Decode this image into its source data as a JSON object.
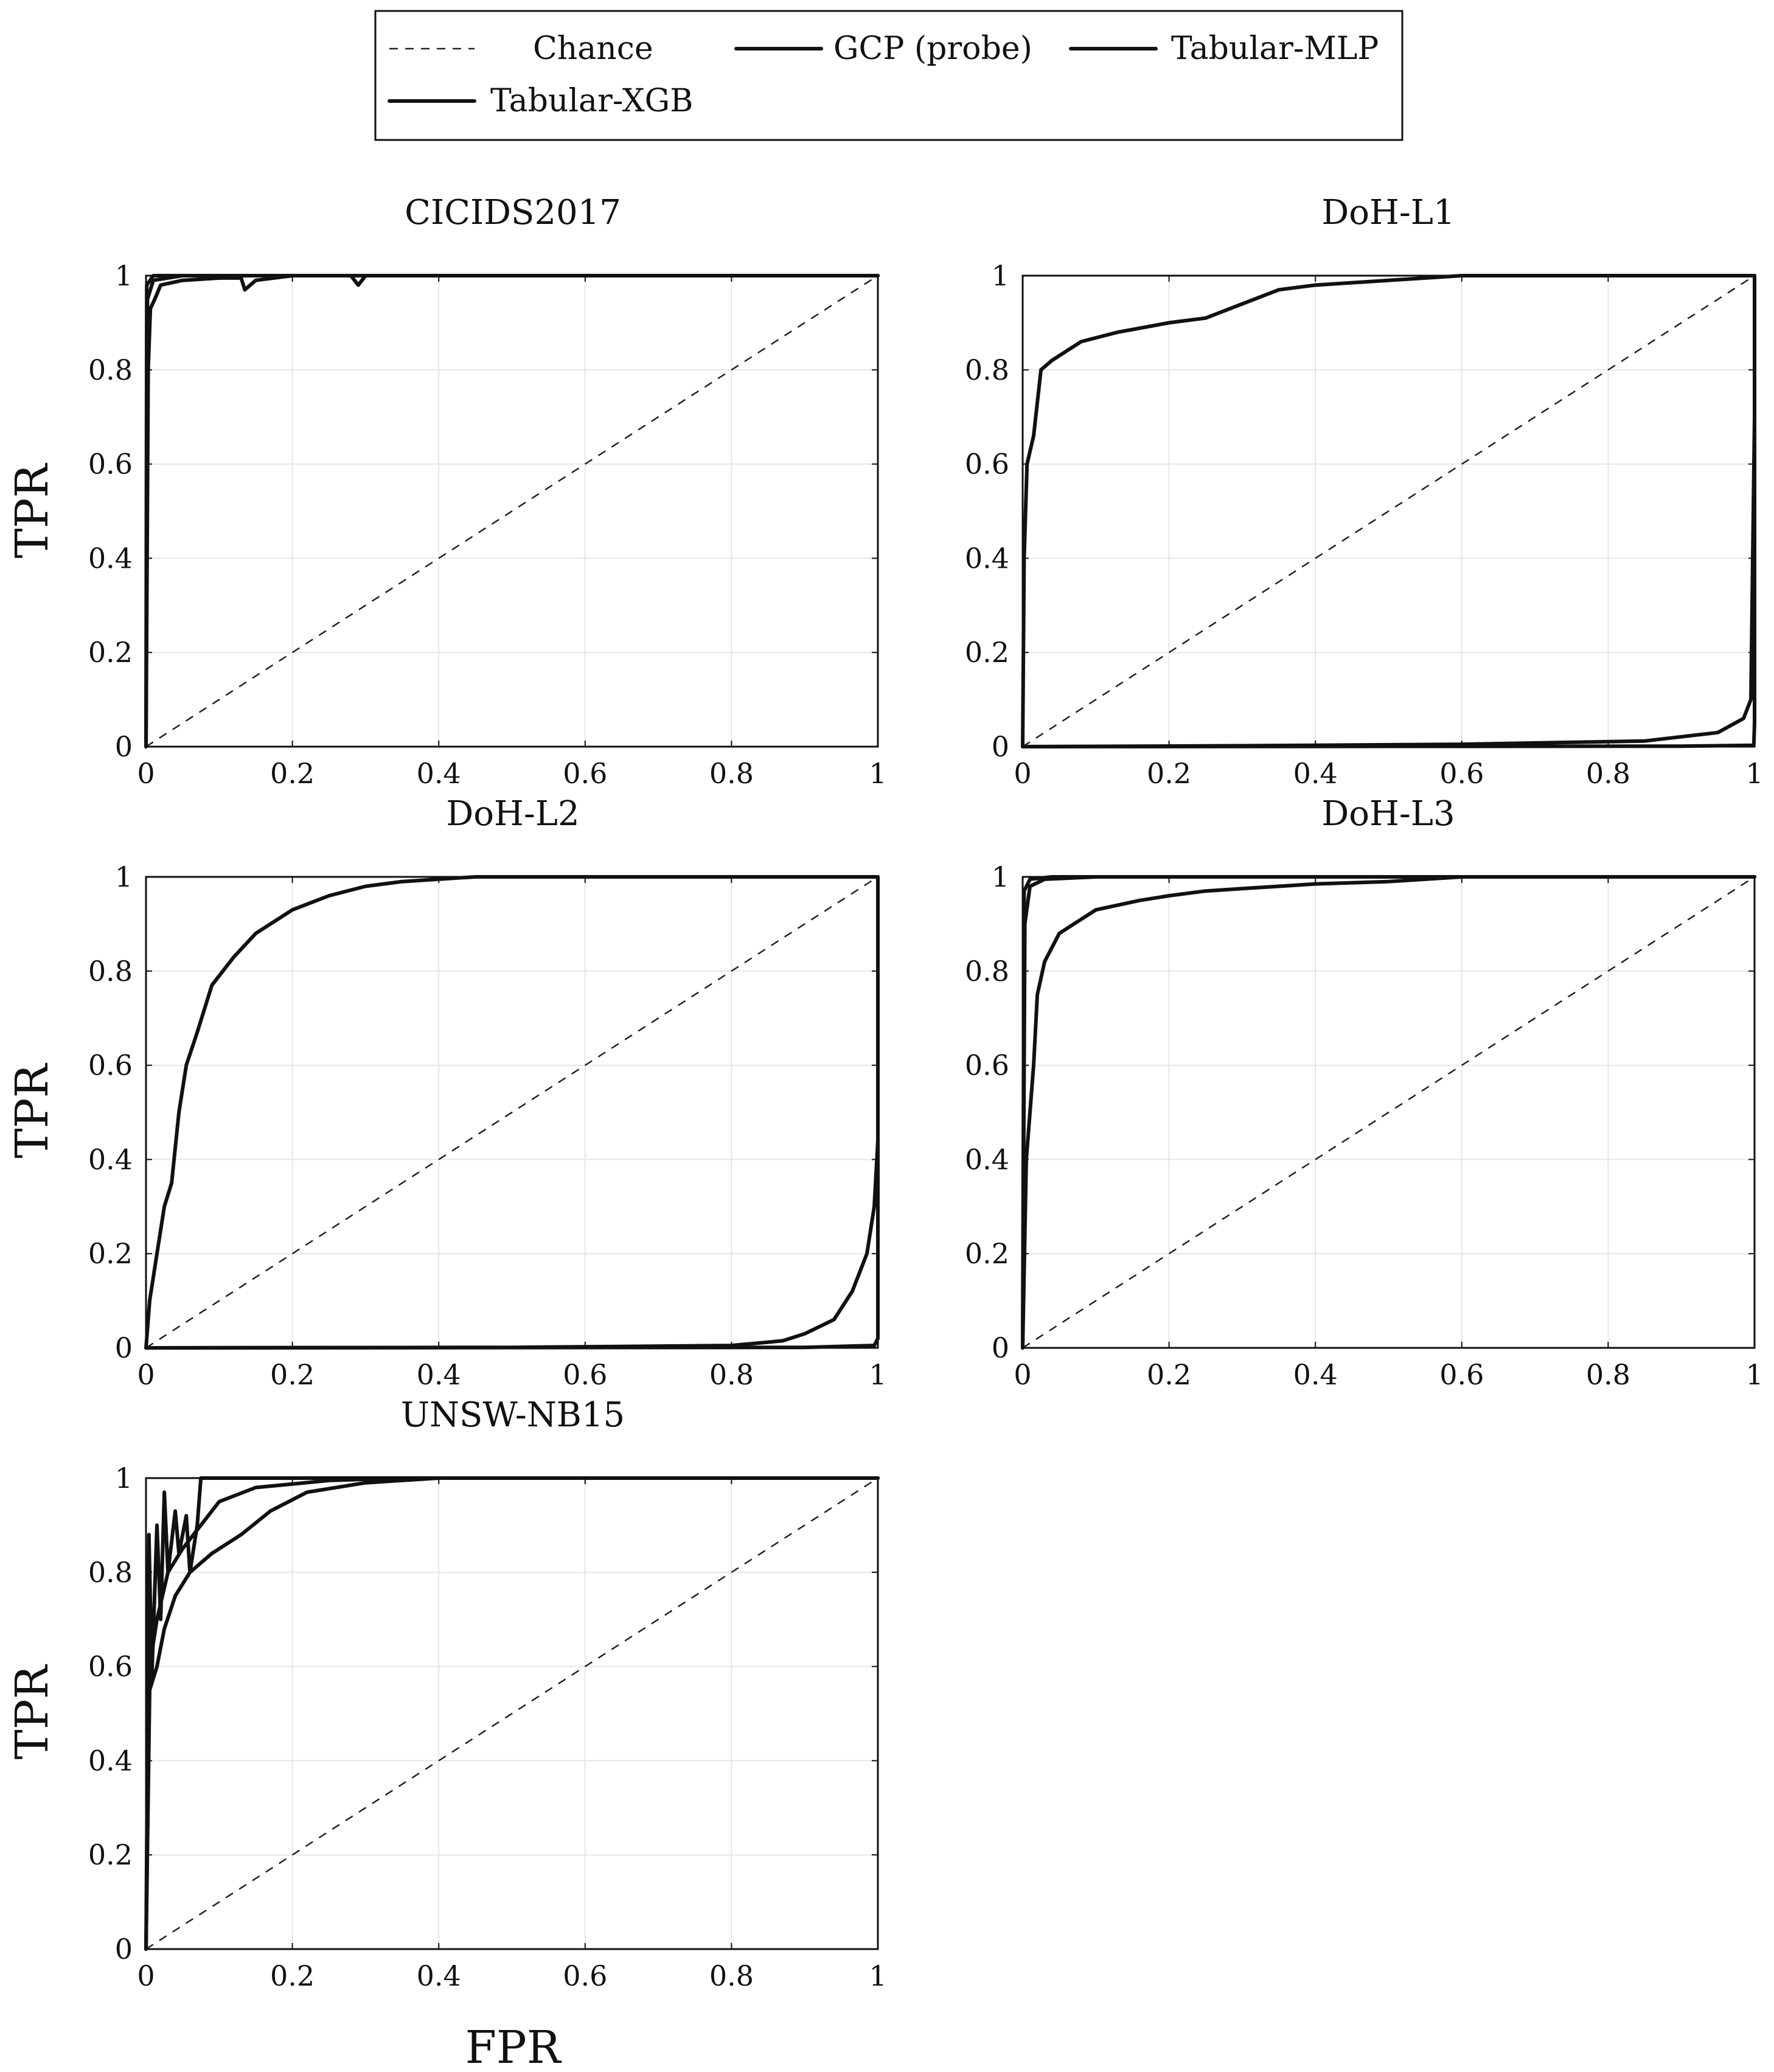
{
  "legend": {
    "entries": [
      {
        "label": "Chance",
        "style": "dashed"
      },
      {
        "label": "GCP (probe)",
        "style": "solid"
      },
      {
        "label": "Tabular-MLP",
        "style": "solid"
      },
      {
        "label": "Tabular-XGB",
        "style": "solid"
      }
    ]
  },
  "colors": {
    "line": "#111111",
    "grid": "#e6e6e6",
    "background": "#ffffff"
  },
  "chart_data": [
    {
      "type": "line",
      "title": "CICIDS2017",
      "xlabel": "",
      "ylabel": "TPR",
      "xlim": [
        0,
        1
      ],
      "ylim": [
        0,
        1
      ],
      "xticks": [
        "0",
        "0.2",
        "0.4",
        "0.6",
        "0.8",
        "1"
      ],
      "yticks": [
        "0",
        "0.2",
        "0.4",
        "0.6",
        "0.8",
        "1"
      ],
      "grid": true,
      "series": [
        {
          "name": "Chance",
          "style": "dashed",
          "points": [
            [
              0,
              0
            ],
            [
              1,
              1
            ]
          ]
        },
        {
          "name": "GCP (probe)",
          "points": [
            [
              0,
              0
            ],
            [
              0.003,
              0.8
            ],
            [
              0.006,
              0.93
            ],
            [
              0.012,
              0.95
            ],
            [
              0.02,
              0.98
            ],
            [
              0.05,
              0.99
            ],
            [
              0.1,
              0.995
            ],
            [
              0.13,
              0.995
            ],
            [
              0.135,
              0.97
            ],
            [
              0.15,
              0.99
            ],
            [
              0.2,
              1
            ],
            [
              0.28,
              1
            ],
            [
              0.29,
              0.98
            ],
            [
              0.3,
              1
            ],
            [
              1,
              1
            ]
          ]
        },
        {
          "name": "Tabular-MLP",
          "points": [
            [
              0,
              0
            ],
            [
              0.002,
              0.95
            ],
            [
              0.01,
              0.99
            ],
            [
              0.05,
              1
            ],
            [
              1,
              1
            ]
          ]
        },
        {
          "name": "Tabular-XGB",
          "points": [
            [
              0,
              0
            ],
            [
              0.001,
              0.98
            ],
            [
              0.01,
              1
            ],
            [
              1,
              1
            ]
          ]
        }
      ]
    },
    {
      "type": "line",
      "title": "DoH-L1",
      "xlabel": "",
      "ylabel": "",
      "xlim": [
        0,
        1
      ],
      "ylim": [
        0,
        1
      ],
      "xticks": [
        "0",
        "0.2",
        "0.4",
        "0.6",
        "0.8",
        "1"
      ],
      "yticks": [
        "0",
        "0.2",
        "0.4",
        "0.6",
        "0.8",
        "1"
      ],
      "grid": true,
      "series": [
        {
          "name": "Chance",
          "style": "dashed",
          "points": [
            [
              0,
              0
            ],
            [
              1,
              1
            ]
          ]
        },
        {
          "name": "GCP (probe)",
          "points": [
            [
              0,
              0
            ],
            [
              0.002,
              0.4
            ],
            [
              0.006,
              0.6
            ],
            [
              0.015,
              0.66
            ],
            [
              0.025,
              0.8
            ],
            [
              0.04,
              0.82
            ],
            [
              0.08,
              0.86
            ],
            [
              0.13,
              0.88
            ],
            [
              0.2,
              0.9
            ],
            [
              0.25,
              0.91
            ],
            [
              0.3,
              0.94
            ],
            [
              0.35,
              0.97
            ],
            [
              0.4,
              0.98
            ],
            [
              0.5,
              0.99
            ],
            [
              0.6,
              1
            ],
            [
              1,
              1
            ]
          ]
        },
        {
          "name": "Tabular-MLP",
          "points": [
            [
              0,
              0
            ],
            [
              0.3,
              0.002
            ],
            [
              0.6,
              0.005
            ],
            [
              0.85,
              0.012
            ],
            [
              0.95,
              0.03
            ],
            [
              0.985,
              0.06
            ],
            [
              0.995,
              0.1
            ],
            [
              1,
              0.7
            ],
            [
              1,
              1
            ]
          ]
        },
        {
          "name": "Tabular-XGB",
          "points": [
            [
              0,
              0
            ],
            [
              0.9,
              0.001
            ],
            [
              0.999,
              0.003
            ],
            [
              1,
              0.05
            ],
            [
              1,
              1
            ]
          ]
        }
      ]
    },
    {
      "type": "line",
      "title": "DoH-L2",
      "xlabel": "",
      "ylabel": "TPR",
      "xlim": [
        0,
        1
      ],
      "ylim": [
        0,
        1
      ],
      "xticks": [
        "0",
        "0.2",
        "0.4",
        "0.6",
        "0.8",
        "1"
      ],
      "yticks": [
        "0",
        "0.2",
        "0.4",
        "0.6",
        "0.8",
        "1"
      ],
      "grid": true,
      "series": [
        {
          "name": "Chance",
          "style": "dashed",
          "points": [
            [
              0,
              0
            ],
            [
              1,
              1
            ]
          ]
        },
        {
          "name": "GCP (probe)",
          "points": [
            [
              0,
              0
            ],
            [
              0.005,
              0.1
            ],
            [
              0.015,
              0.2
            ],
            [
              0.025,
              0.3
            ],
            [
              0.035,
              0.35
            ],
            [
              0.045,
              0.5
            ],
            [
              0.055,
              0.6
            ],
            [
              0.07,
              0.67
            ],
            [
              0.09,
              0.77
            ],
            [
              0.12,
              0.83
            ],
            [
              0.15,
              0.88
            ],
            [
              0.2,
              0.93
            ],
            [
              0.25,
              0.96
            ],
            [
              0.3,
              0.98
            ],
            [
              0.35,
              0.99
            ],
            [
              0.45,
              1
            ],
            [
              1,
              1
            ]
          ]
        },
        {
          "name": "Tabular-MLP",
          "points": [
            [
              0,
              0
            ],
            [
              0.5,
              0.001
            ],
            [
              0.8,
              0.005
            ],
            [
              0.87,
              0.015
            ],
            [
              0.9,
              0.03
            ],
            [
              0.94,
              0.06
            ],
            [
              0.965,
              0.12
            ],
            [
              0.985,
              0.2
            ],
            [
              0.995,
              0.3
            ],
            [
              1,
              0.44
            ],
            [
              1,
              1
            ]
          ]
        },
        {
          "name": "Tabular-XGB",
          "points": [
            [
              0,
              0
            ],
            [
              0.9,
              0.001
            ],
            [
              0.995,
              0.005
            ],
            [
              1,
              0.02
            ],
            [
              1,
              1
            ]
          ]
        }
      ]
    },
    {
      "type": "line",
      "title": "DoH-L3",
      "xlabel": "",
      "ylabel": "",
      "xlim": [
        0,
        1
      ],
      "ylim": [
        0,
        1
      ],
      "xticks": [
        "0",
        "0.2",
        "0.4",
        "0.6",
        "0.8",
        "1"
      ],
      "yticks": [
        "0",
        "0.2",
        "0.4",
        "0.6",
        "0.8",
        "1"
      ],
      "grid": true,
      "series": [
        {
          "name": "Chance",
          "style": "dashed",
          "points": [
            [
              0,
              0
            ],
            [
              1,
              1
            ]
          ]
        },
        {
          "name": "GCP (probe)",
          "points": [
            [
              0,
              0
            ],
            [
              0.005,
              0.4
            ],
            [
              0.01,
              0.5
            ],
            [
              0.015,
              0.6
            ],
            [
              0.02,
              0.75
            ],
            [
              0.03,
              0.82
            ],
            [
              0.04,
              0.85
            ],
            [
              0.05,
              0.88
            ],
            [
              0.07,
              0.9
            ],
            [
              0.1,
              0.93
            ],
            [
              0.13,
              0.94
            ],
            [
              0.16,
              0.95
            ],
            [
              0.2,
              0.96
            ],
            [
              0.25,
              0.97
            ],
            [
              0.3,
              0.975
            ],
            [
              0.35,
              0.98
            ],
            [
              0.4,
              0.985
            ],
            [
              0.5,
              0.99
            ],
            [
              0.6,
              1
            ],
            [
              1,
              1
            ]
          ]
        },
        {
          "name": "Tabular-MLP",
          "points": [
            [
              0,
              0
            ],
            [
              0.003,
              0.9
            ],
            [
              0.01,
              0.98
            ],
            [
              0.03,
              0.995
            ],
            [
              0.1,
              1
            ],
            [
              1,
              1
            ]
          ]
        },
        {
          "name": "Tabular-XGB",
          "points": [
            [
              0,
              0
            ],
            [
              0.002,
              0.97
            ],
            [
              0.01,
              0.995
            ],
            [
              0.04,
              1
            ],
            [
              1,
              1
            ]
          ]
        }
      ]
    },
    {
      "type": "line",
      "title": "UNSW-NB15",
      "xlabel": "FPR",
      "ylabel": "TPR",
      "xlim": [
        0,
        1
      ],
      "ylim": [
        0,
        1
      ],
      "xticks": [
        "0",
        "0.2",
        "0.4",
        "0.6",
        "0.8",
        "1"
      ],
      "yticks": [
        "0",
        "0.2",
        "0.4",
        "0.6",
        "0.8",
        "1"
      ],
      "grid": true,
      "series": [
        {
          "name": "Chance",
          "style": "dashed",
          "points": [
            [
              0,
              0
            ],
            [
              1,
              1
            ]
          ]
        },
        {
          "name": "GCP (probe)",
          "points": [
            [
              0,
              0
            ],
            [
              0.005,
              0.55
            ],
            [
              0.015,
              0.6
            ],
            [
              0.025,
              0.68
            ],
            [
              0.04,
              0.75
            ],
            [
              0.06,
              0.8
            ],
            [
              0.09,
              0.84
            ],
            [
              0.13,
              0.88
            ],
            [
              0.17,
              0.93
            ],
            [
              0.22,
              0.97
            ],
            [
              0.3,
              0.99
            ],
            [
              0.4,
              1
            ],
            [
              1,
              1
            ]
          ]
        },
        {
          "name": "Tabular-MLP",
          "points": [
            [
              0,
              0
            ],
            [
              0.005,
              0.6
            ],
            [
              0.015,
              0.7
            ],
            [
              0.03,
              0.8
            ],
            [
              0.05,
              0.85
            ],
            [
              0.075,
              0.9
            ],
            [
              0.1,
              0.95
            ],
            [
              0.15,
              0.98
            ],
            [
              0.25,
              0.995
            ],
            [
              0.35,
              1
            ],
            [
              1,
              1
            ]
          ]
        },
        {
          "name": "Tabular-XGB",
          "points": [
            [
              0,
              0
            ],
            [
              0.004,
              0.88
            ],
            [
              0.008,
              0.58
            ],
            [
              0.015,
              0.9
            ],
            [
              0.02,
              0.7
            ],
            [
              0.025,
              0.97
            ],
            [
              0.03,
              0.8
            ],
            [
              0.04,
              0.93
            ],
            [
              0.045,
              0.84
            ],
            [
              0.055,
              0.92
            ],
            [
              0.06,
              0.8
            ],
            [
              0.07,
              0.9
            ],
            [
              0.075,
              1
            ],
            [
              0.1,
              1
            ],
            [
              1,
              1
            ]
          ]
        }
      ]
    }
  ]
}
